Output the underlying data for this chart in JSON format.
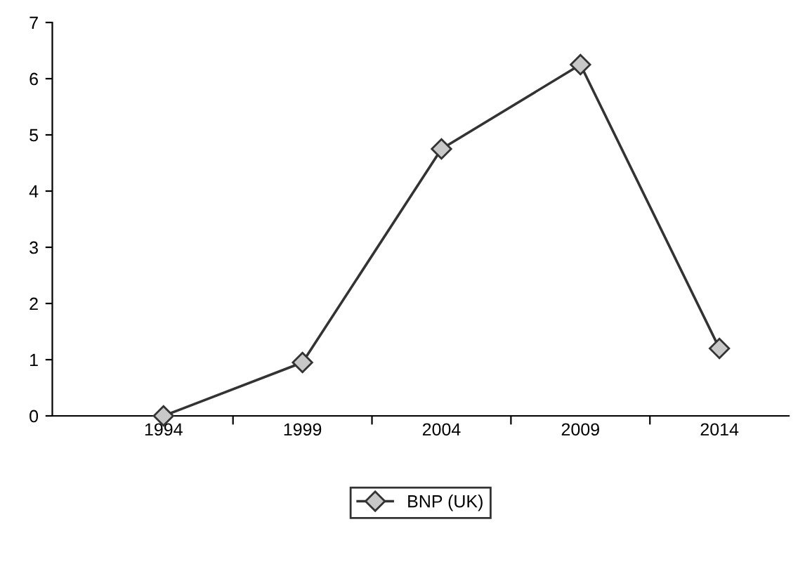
{
  "chart_data": {
    "type": "line",
    "categories": [
      "1994",
      "1999",
      "2004",
      "2009",
      "2014"
    ],
    "series": [
      {
        "name": "BNP (UK)",
        "color": "#333333",
        "values": [
          0,
          0.95,
          4.75,
          6.25,
          1.2
        ]
      }
    ],
    "ylim": [
      0,
      7
    ],
    "yticks": [
      0,
      1,
      2,
      3,
      4,
      5,
      6,
      7
    ],
    "marker": "diamond",
    "line_style": "solid",
    "grid": false,
    "legend": "bottom"
  }
}
